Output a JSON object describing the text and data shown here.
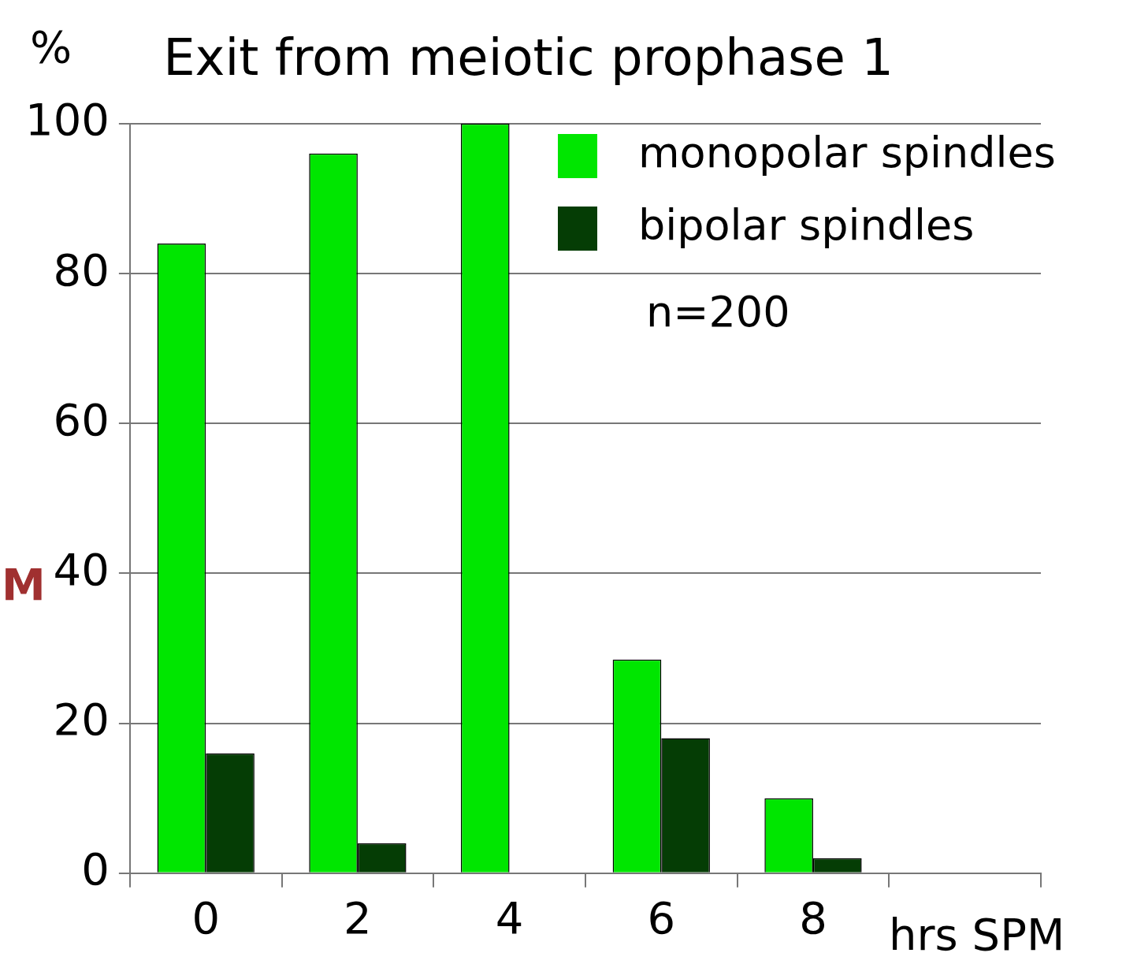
{
  "chart_data": {
    "type": "bar",
    "title": "Exit from meiotic prophase 1",
    "xlabel": "hrs SPM",
    "ylabel": "%",
    "categories": [
      "0",
      "2",
      "4",
      "6",
      "8",
      null
    ],
    "series": [
      {
        "name": "monopolar spindles",
        "color": "#00e600",
        "values": [
          84,
          96,
          100,
          28.5,
          10,
          null
        ]
      },
      {
        "name": "bipolar spindles",
        "color": "#053d05",
        "values": [
          16,
          4,
          0,
          18,
          2,
          null
        ]
      }
    ],
    "ylim": [
      0,
      100
    ],
    "yticks": [
      0,
      20,
      40,
      60,
      80,
      100
    ],
    "grid": "y",
    "legend": "top right",
    "annotations": [
      "n=200",
      "M"
    ]
  }
}
